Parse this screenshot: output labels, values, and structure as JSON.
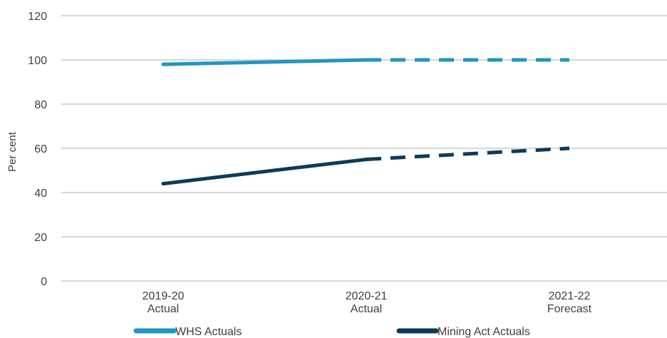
{
  "chart_data": {
    "type": "line",
    "ylabel": "Per cent",
    "ylim": [
      0,
      120
    ],
    "yticks": [
      "0",
      "20",
      "40",
      "60",
      "80",
      "100",
      "120"
    ],
    "categories": [
      [
        "2019-20",
        "Actual"
      ],
      [
        "2020-21",
        "Actual"
      ],
      [
        "2021-22",
        "Forecast"
      ]
    ],
    "grid": true,
    "legend_position": "bottom",
    "series": [
      {
        "name": "WHS Actuals",
        "color": "#2196C3",
        "values": [
          98,
          100,
          100
        ],
        "segment_styles": [
          "solid",
          "dashed"
        ]
      },
      {
        "name": "Mining Act Actuals",
        "color": "#0E3A5A",
        "values": [
          44,
          55,
          60
        ],
        "segment_styles": [
          "solid",
          "dashed"
        ]
      }
    ]
  }
}
